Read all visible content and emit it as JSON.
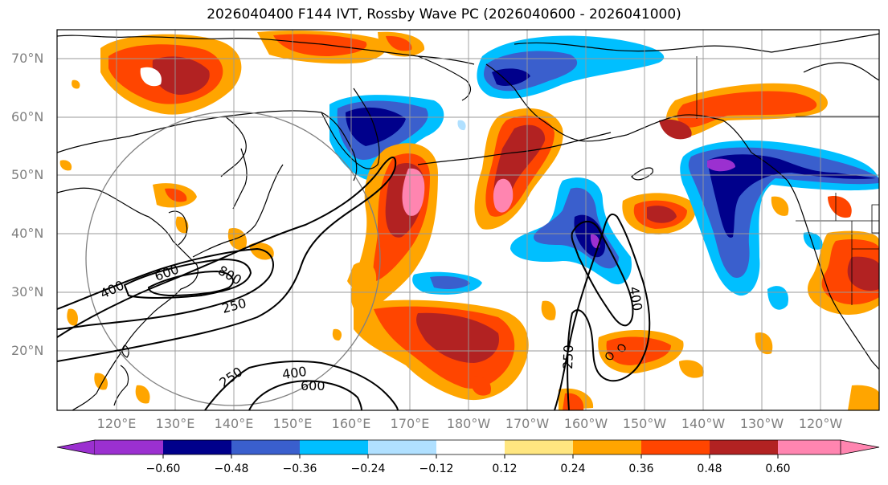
{
  "title": "2026040400 F144 IVT, Rossby Wave PC (2026040600 - 2026041000)",
  "lat_ticks": [
    "70°N",
    "60°N",
    "50°N",
    "40°N",
    "30°N",
    "20°N"
  ],
  "lon_ticks": [
    "120°E",
    "130°E",
    "140°E",
    "150°E",
    "160°E",
    "170°E",
    "180°W",
    "170°W",
    "160°W",
    "150°W",
    "140°W",
    "130°W",
    "120°W"
  ],
  "contour_labels": [
    {
      "text": "400"
    },
    {
      "text": "600"
    },
    {
      "text": "800"
    },
    {
      "text": "250"
    },
    {
      "text": "250"
    },
    {
      "text": "400"
    },
    {
      "text": "600"
    },
    {
      "text": "400"
    },
    {
      "text": "250"
    }
  ],
  "colorbar": {
    "tick_labels": [
      "−0.60",
      "−0.48",
      "−0.36",
      "−0.24",
      "−0.12",
      "0.12",
      "0.24",
      "0.36",
      "0.48",
      "0.60"
    ],
    "colors": [
      "#9b30d0",
      "#00008b",
      "#3a5fcd",
      "#00bfff",
      "#b0e0ff",
      "#ffffff",
      "#ffe680",
      "#ffa500",
      "#ff4500",
      "#b22222",
      "#ff85b0"
    ]
  },
  "colors": {
    "neg_strong": "#9b30d0",
    "neg_dark": "#00008b",
    "neg_mid": "#3a5fcd",
    "neg_light": "#00bfff",
    "neg_pale": "#b0e0ff",
    "pos_pale": "#ffe680",
    "pos_light": "#ffa500",
    "pos_mid": "#ff4500",
    "pos_dark": "#b22222",
    "pos_strong": "#ff85b0"
  }
}
